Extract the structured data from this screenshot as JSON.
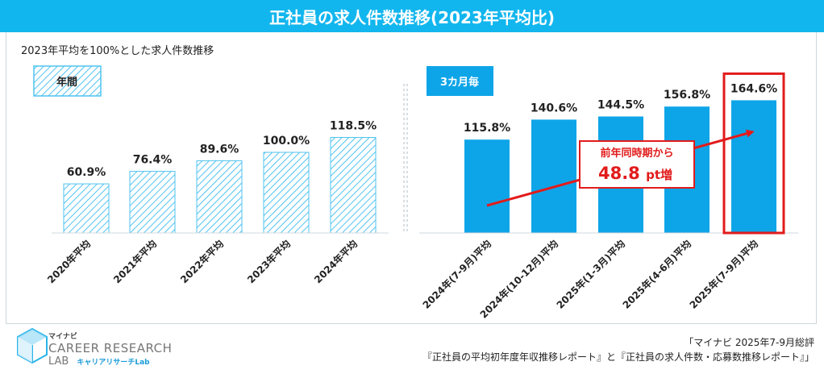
{
  "title": "正社員の求人件数推移(2023年平均比)",
  "subtitle": "2023年平均を100%とした求人件数推移",
  "legend": {
    "annual": "年間",
    "quarterly": "3カ月毎"
  },
  "annotation": {
    "line1": "前年同時期から",
    "value": "48.8",
    "unit": "pt増"
  },
  "logo": {
    "kana": "マイナビ",
    "line1": "CAREER RESEARCH",
    "line2": "LAB",
    "sub": "キャリアリサーチLab"
  },
  "source": {
    "line1": "「マイナビ 2025年7-9月総評",
    "line2": "『正社員の平均初年度年収推移レポート』と『正社員の求人件数・応募数推移レポート』」"
  },
  "colors": {
    "accent": "#12b6ee",
    "bar_solid": "#0ea5e8",
    "hatch": "#4fc3f0",
    "highlight": "#e21b1b"
  },
  "chart_data": {
    "type": "bar",
    "title": "正社員の求人件数推移(2023年平均比)",
    "subtitle": "2023年平均を100%とした求人件数推移",
    "categories": [
      "2020年平均",
      "2021年平均",
      "2022年平均",
      "2023年平均",
      "2024年平均",
      "2024年(7-9月)平均",
      "2024年(10-12月)平均",
      "2025年(1-3月)平均",
      "2025年(4-6月)平均",
      "2025年(7-9月)平均"
    ],
    "labels": [
      "60.9%",
      "76.4%",
      "89.6%",
      "100.0%",
      "118.5%",
      "115.8%",
      "140.6%",
      "144.5%",
      "156.8%",
      "164.6%"
    ],
    "series": [
      {
        "name": "年間",
        "values": [
          60.9,
          76.4,
          89.6,
          100.0,
          118.5,
          null,
          null,
          null,
          null,
          null
        ]
      },
      {
        "name": "3カ月毎",
        "values": [
          null,
          null,
          null,
          null,
          null,
          115.8,
          140.6,
          144.5,
          156.8,
          164.6
        ]
      }
    ],
    "ylim": [
      0,
      170
    ],
    "highlighted_category": "2025年(7-9月)平均"
  }
}
